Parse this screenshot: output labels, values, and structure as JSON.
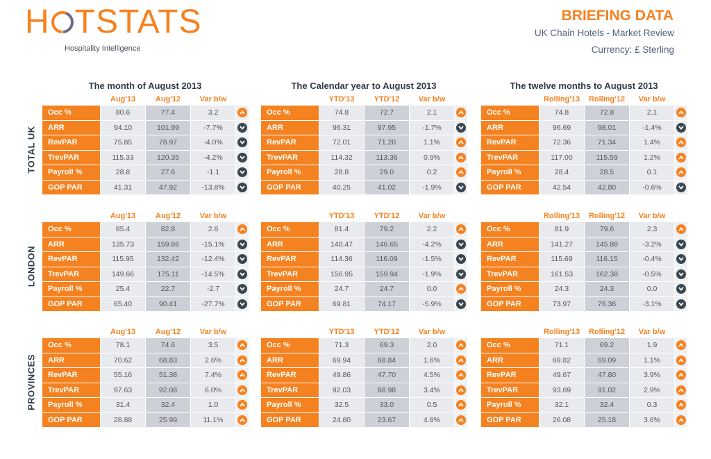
{
  "logo": {
    "text_a": "H",
    "text_b": "TSTATS",
    "tagline": "Hospitality Intelligence"
  },
  "header": {
    "title": "BRIEFING DATA",
    "subtitle": "UK Chain Hotels - Market Review",
    "currency": "Currency: £ Sterling"
  },
  "colors": {
    "orange": "#F58220",
    "dark": "#3A4750"
  },
  "metrics": [
    "Occ %",
    "ARR",
    "RevPAR",
    "TrevPAR",
    "Payroll %",
    "GOP PAR"
  ],
  "panels": [
    {
      "title": "The month of August 2013",
      "cols": [
        "Aug'13",
        "Aug'12",
        "Var b/w"
      ]
    },
    {
      "title": "The Calendar year to August 2013",
      "cols": [
        "YTD'13",
        "YTD'12",
        "Var b/w"
      ]
    },
    {
      "title": "The twelve months to August 2013",
      "cols": [
        "Rolling'13",
        "Rolling'12",
        "Var b/w"
      ]
    }
  ],
  "sections": [
    {
      "name": "TOTAL UK",
      "tables": [
        [
          [
            "80.6",
            "77.4",
            "3.2",
            "up"
          ],
          [
            "94.10",
            "101.99",
            "-7.7%",
            "down"
          ],
          [
            "75.85",
            "78.97",
            "-4.0%",
            "down"
          ],
          [
            "115.33",
            "120.35",
            "-4.2%",
            "down"
          ],
          [
            "28.8",
            "27.6",
            "-1.1",
            "down"
          ],
          [
            "41.31",
            "47.92",
            "-13.8%",
            "down"
          ]
        ],
        [
          [
            "74.8",
            "72.7",
            "2.1",
            "up"
          ],
          [
            "96.31",
            "97.95",
            "-1.7%",
            "down"
          ],
          [
            "72.01",
            "71.20",
            "1.1%",
            "up"
          ],
          [
            "114.32",
            "113.36",
            "0.9%",
            "up"
          ],
          [
            "28.8",
            "29.0",
            "0.2",
            "up"
          ],
          [
            "40.25",
            "41.02",
            "-1.9%",
            "down"
          ]
        ],
        [
          [
            "74.8",
            "72.8",
            "2.1",
            "up"
          ],
          [
            "96.69",
            "98.01",
            "-1.4%",
            "down"
          ],
          [
            "72.36",
            "71.34",
            "1.4%",
            "up"
          ],
          [
            "117.00",
            "115.59",
            "1.2%",
            "up"
          ],
          [
            "28.4",
            "28.5",
            "0.1",
            "up"
          ],
          [
            "42.54",
            "42.80",
            "-0.6%",
            "down"
          ]
        ]
      ]
    },
    {
      "name": "LONDON",
      "tables": [
        [
          [
            "85.4",
            "82.8",
            "2.6",
            "up"
          ],
          [
            "135.73",
            "159.86",
            "-15.1%",
            "down"
          ],
          [
            "115.95",
            "132.42",
            "-12.4%",
            "down"
          ],
          [
            "149.66",
            "175.11",
            "-14.5%",
            "down"
          ],
          [
            "25.4",
            "22.7",
            "-2.7",
            "down"
          ],
          [
            "65.40",
            "90.41",
            "-27.7%",
            "down"
          ]
        ],
        [
          [
            "81.4",
            "79.2",
            "2.2",
            "up"
          ],
          [
            "140.47",
            "146.65",
            "-4.2%",
            "down"
          ],
          [
            "114.36",
            "116.09",
            "-1.5%",
            "down"
          ],
          [
            "156.95",
            "159.94",
            "-1.9%",
            "down"
          ],
          [
            "24.7",
            "24.7",
            "0.0",
            "up"
          ],
          [
            "69.81",
            "74.17",
            "-5.9%",
            "down"
          ]
        ],
        [
          [
            "81.9",
            "79.6",
            "2.3",
            "up"
          ],
          [
            "141.27",
            "145.88",
            "-3.2%",
            "down"
          ],
          [
            "115.69",
            "116.15",
            "-0.4%",
            "down"
          ],
          [
            "161.53",
            "162.38",
            "-0.5%",
            "down"
          ],
          [
            "24.3",
            "24.3",
            "0.0",
            "down"
          ],
          [
            "73.97",
            "76.36",
            "-3.1%",
            "down"
          ]
        ]
      ]
    },
    {
      "name": "PROVINCES",
      "tables": [
        [
          [
            "78.1",
            "74.6",
            "3.5",
            "up"
          ],
          [
            "70.62",
            "68.83",
            "2.6%",
            "up"
          ],
          [
            "55.16",
            "51.38",
            "7.4%",
            "up"
          ],
          [
            "97.63",
            "92.08",
            "6.0%",
            "up"
          ],
          [
            "31.4",
            "32.4",
            "1.0",
            "up"
          ],
          [
            "28.88",
            "25.99",
            "11.1%",
            "up"
          ]
        ],
        [
          [
            "71.3",
            "69.3",
            "2.0",
            "up"
          ],
          [
            "69.94",
            "68.84",
            "1.6%",
            "up"
          ],
          [
            "49.86",
            "47.70",
            "4.5%",
            "up"
          ],
          [
            "92.03",
            "88.98",
            "3.4%",
            "up"
          ],
          [
            "32.5",
            "33.0",
            "0.5",
            "up"
          ],
          [
            "24.80",
            "23.67",
            "4.8%",
            "up"
          ]
        ],
        [
          [
            "71.1",
            "69.2",
            "1.9",
            "up"
          ],
          [
            "69.82",
            "69.09",
            "1.1%",
            "up"
          ],
          [
            "49.67",
            "47.80",
            "3.9%",
            "up"
          ],
          [
            "93.69",
            "91.02",
            "2.9%",
            "up"
          ],
          [
            "32.1",
            "32.4",
            "0.3",
            "up"
          ],
          [
            "26.08",
            "25.18",
            "3.6%",
            "up"
          ]
        ]
      ]
    }
  ]
}
